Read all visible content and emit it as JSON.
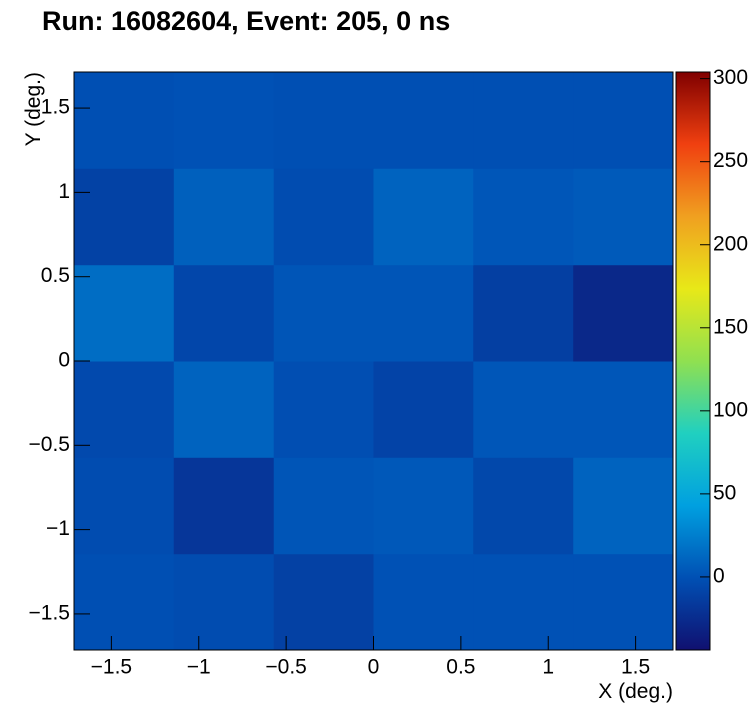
{
  "chart_data": {
    "type": "heatmap",
    "title": "Run: 16082604, Event: 205, 0 ns",
    "x_label": "X (deg.)",
    "y_label": "Y (deg.)",
    "xbins": [
      -1.714,
      -1.143,
      -0.571,
      0,
      0.571,
      1.143,
      1.714
    ],
    "ybins": [
      -1.714,
      -1.143,
      -0.571,
      0,
      0.571,
      1.143,
      1.714
    ],
    "values": [
      [
        -1,
        -3,
        -11,
        0,
        0,
        0
      ],
      [
        -3,
        -18,
        2,
        4,
        -6,
        10
      ],
      [
        -5,
        10,
        -2,
        -9,
        3,
        3
      ],
      [
        15,
        -7,
        2,
        2,
        -12,
        -28
      ],
      [
        -10,
        8,
        -3,
        10,
        3,
        5
      ],
      [
        -1,
        0,
        -1,
        -1,
        -1,
        -1
      ]
    ],
    "xlim": [
      -1.714,
      1.714
    ],
    "ylim": [
      -1.714,
      1.714
    ],
    "xticks": [
      {
        "value": -1.5,
        "label": "−1.5"
      },
      {
        "value": -1,
        "label": "−1"
      },
      {
        "value": -0.5,
        "label": "−0.5"
      },
      0,
      0.5,
      1,
      1.5
    ],
    "yticks": [
      {
        "value": -1.5,
        "label": "−1.5"
      },
      {
        "value": -1,
        "label": "−1"
      },
      {
        "value": -0.5,
        "label": "−0.5"
      },
      0,
      0.5,
      1,
      1.5
    ],
    "zlim": [
      -44,
      304
    ],
    "zticks": [
      0,
      50,
      100,
      150,
      200,
      250,
      300
    ],
    "colorscale": [
      "#101070",
      "#0050b4",
      "#00a0e0",
      "#20d0c0",
      "#90e050",
      "#e8e818",
      "#f0a020",
      "#f04010",
      "#800000"
    ]
  }
}
